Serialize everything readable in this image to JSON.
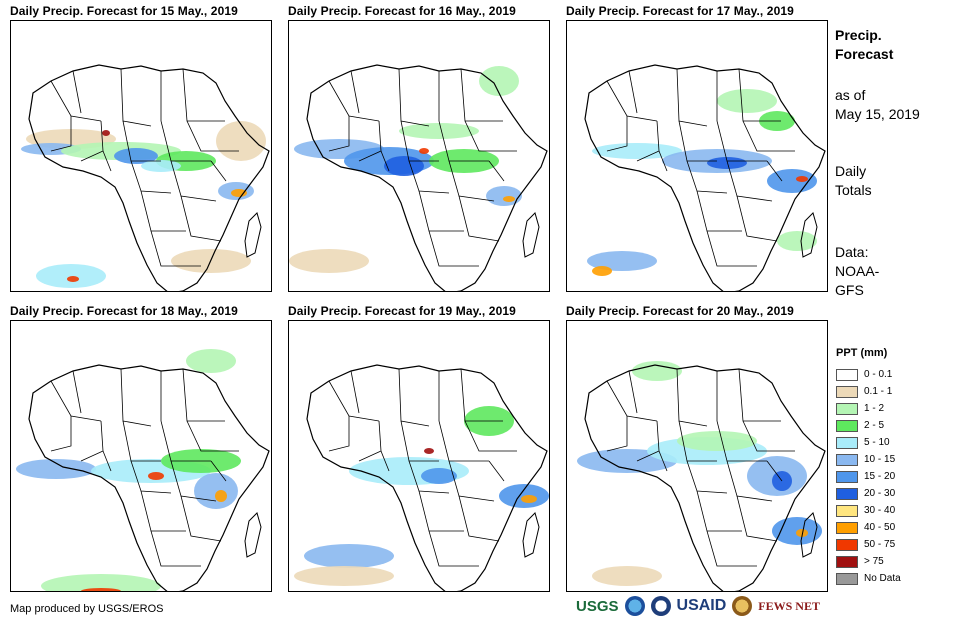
{
  "panels": [
    {
      "title": "Daily Precip. Forecast for 15 May., 2019"
    },
    {
      "title": "Daily Precip. Forecast for 16 May., 2019"
    },
    {
      "title": "Daily Precip. Forecast for 17 May., 2019"
    },
    {
      "title": "Daily Precip. Forecast for 18 May., 2019"
    },
    {
      "title": "Daily Precip. Forecast for 19 May., 2019"
    },
    {
      "title": "Daily Precip. Forecast for 20 May., 2019"
    }
  ],
  "sidebar": {
    "title_line1": "Precip.",
    "title_line2": "Forecast",
    "asof_line1": "as of",
    "asof_line2": "May 15, 2019",
    "totals_line1": "Daily",
    "totals_line2": "Totals",
    "data_line1": "Data:",
    "data_line2": "NOAA-",
    "data_line3": "GFS"
  },
  "legend": {
    "title": "PPT (mm)",
    "items": [
      {
        "label": "0 - 0.1",
        "color": "#ffffff"
      },
      {
        "label": "0.1 - 1",
        "color": "#ecd9b8"
      },
      {
        "label": "1 - 2",
        "color": "#b4f5b4"
      },
      {
        "label": "2 - 5",
        "color": "#5ee85e"
      },
      {
        "label": "5 - 10",
        "color": "#a9ecfa"
      },
      {
        "label": "10 - 15",
        "color": "#8ab8f0"
      },
      {
        "label": "15 - 20",
        "color": "#4f96eb"
      },
      {
        "label": "20 - 30",
        "color": "#1f5fe0"
      },
      {
        "label": "30 - 40",
        "color": "#ffe680"
      },
      {
        "label": "40 - 50",
        "color": "#ff9f00"
      },
      {
        "label": "50 - 75",
        "color": "#f03800"
      },
      {
        "label": "> 75",
        "color": "#a01010"
      },
      {
        "label": "No Data",
        "color": "#999999"
      }
    ]
  },
  "footer": {
    "credit": "Map produced by USGS/EROS",
    "logo_usgs": "USGS",
    "logo_usaid": "USAID",
    "logo_fews": "FEWS NET"
  },
  "map_style": {
    "outline_color": "#000000",
    "ocean_color": "#ffffff"
  }
}
